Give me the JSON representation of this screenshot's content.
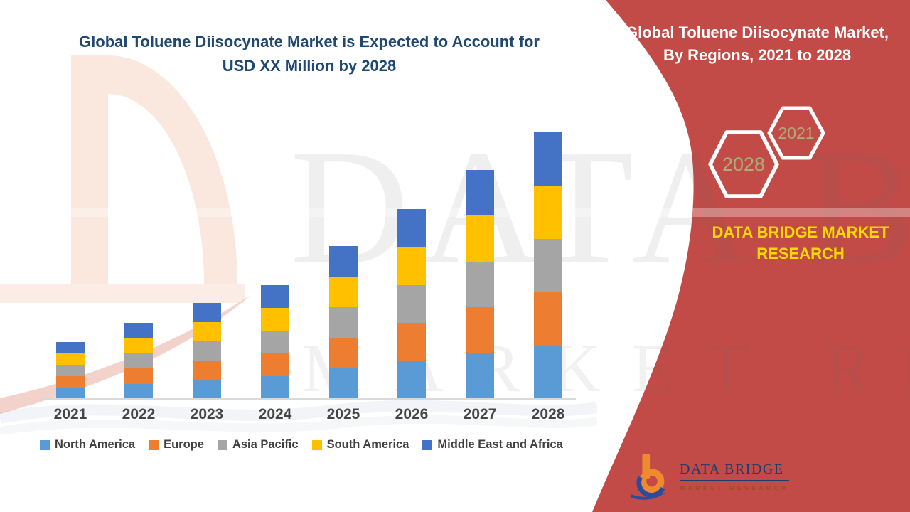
{
  "left_chart": {
    "title_line1": "Global Toluene Diisocynate Market is Expected to Account for",
    "title_line2": "USD XX Million by 2028"
  },
  "chart_data": {
    "type": "bar",
    "stacked": true,
    "title": "Global Toluene Diisocynate Market is Expected to Account for USD XX Million by 2028",
    "xlabel": "",
    "ylabel": "",
    "categories": [
      "2021",
      "2022",
      "2023",
      "2024",
      "2025",
      "2026",
      "2027",
      "2028"
    ],
    "series": [
      {
        "name": "North America",
        "color": "#5B9BD5",
        "values": [
          16,
          21.5,
          27,
          32,
          43,
          53.5,
          64.5,
          75
        ]
      },
      {
        "name": "Europe",
        "color": "#ED7D31",
        "values": [
          16,
          21.5,
          27,
          32,
          43,
          53.5,
          64.5,
          75
        ]
      },
      {
        "name": "Asia Pacific",
        "color": "#A5A5A5",
        "values": [
          16,
          21.5,
          27,
          32,
          43,
          53.5,
          64.5,
          75
        ]
      },
      {
        "name": "South America",
        "color": "#FFC000",
        "values": [
          16,
          21.5,
          27,
          32,
          43,
          53.5,
          64.5,
          75
        ]
      },
      {
        "name": "Middle East and Africa",
        "color": "#4472C4",
        "values": [
          16,
          21.5,
          27,
          32,
          43,
          53.5,
          64.5,
          75
        ]
      }
    ],
    "totals": [
      80,
      107.5,
      135,
      160,
      215,
      267.5,
      322.5,
      375
    ],
    "value_note": "Relative index units read from bar pixel heights; actual market values are masked as 'USD XX Million'. All five regions are drawn with equal segment heights each year.",
    "axes": {
      "y_axis_visible": false,
      "gridlines": false,
      "data_labels": false,
      "legend_position": "bottom",
      "x_axis_line": true
    }
  },
  "panel": {
    "title_line1": "Global Toluene Diisocynate Market,",
    "title_line2": "By Regions, 2021 to 2028",
    "hexagons": [
      {
        "label": "2021"
      },
      {
        "label": "2028"
      }
    ],
    "brand_text": "DATA BRIDGE MARKET RESEARCH"
  },
  "logo": {
    "title": "DATA BRIDGE",
    "subtitle": "MARKET RESEARCH"
  },
  "watermark": {
    "line1": "DATA BRIDGE",
    "line2": "MARKET RESEARCH"
  },
  "colors": {
    "panel_bg": "#C24B47",
    "title_navy": "#1F4873",
    "panel_title": "#FFFFFF",
    "brand_yellow": "#FFD900",
    "hex_year_olive": "#ABAD7C",
    "hexagon_stroke": "#FFFFFF",
    "axis_text": "#454545",
    "legend_text": "#404040",
    "axis_line": "#D9D9D9",
    "logo_navy": "#1E3A6E",
    "logo_orange": "#F08A2E",
    "logo_blue": "#2B4C9B",
    "logo_subtext": "#A04A28"
  }
}
